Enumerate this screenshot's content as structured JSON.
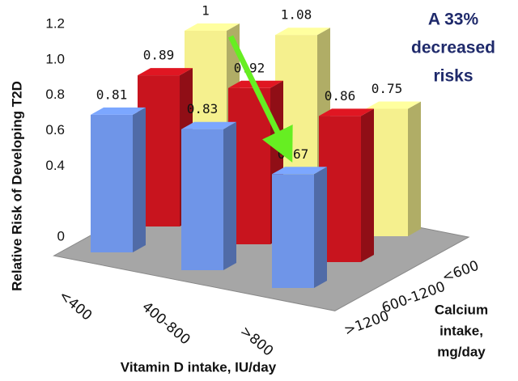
{
  "chart_data": {
    "type": "bar3d",
    "categories": [
      "<400",
      "400-800",
      ">800"
    ],
    "series": [
      {
        "name": ">1200",
        "color": "#6f95e8",
        "values": [
          0.81,
          0.83,
          0.67
        ]
      },
      {
        "name": "600-1200",
        "color": "#c8141e",
        "values": [
          0.89,
          0.92,
          0.86
        ]
      },
      {
        "name": "<600",
        "color": "#f5f08e",
        "values": [
          1,
          1.08,
          0.75
        ]
      }
    ],
    "ylim": [
      0,
      1.2
    ],
    "yticks": [
      0,
      0.4,
      0.6,
      0.8,
      {
        "value": 1,
        "label": "1.0"
      },
      1.2
    ],
    "y_label": "Relative Risk of Developing T2D",
    "x_label": "Vitamin D intake, IU/day",
    "z_label": [
      "Calcium",
      "intake,",
      "mg/day"
    ],
    "annotation": [
      "A 33%",
      "decreased",
      "risks"
    ]
  }
}
